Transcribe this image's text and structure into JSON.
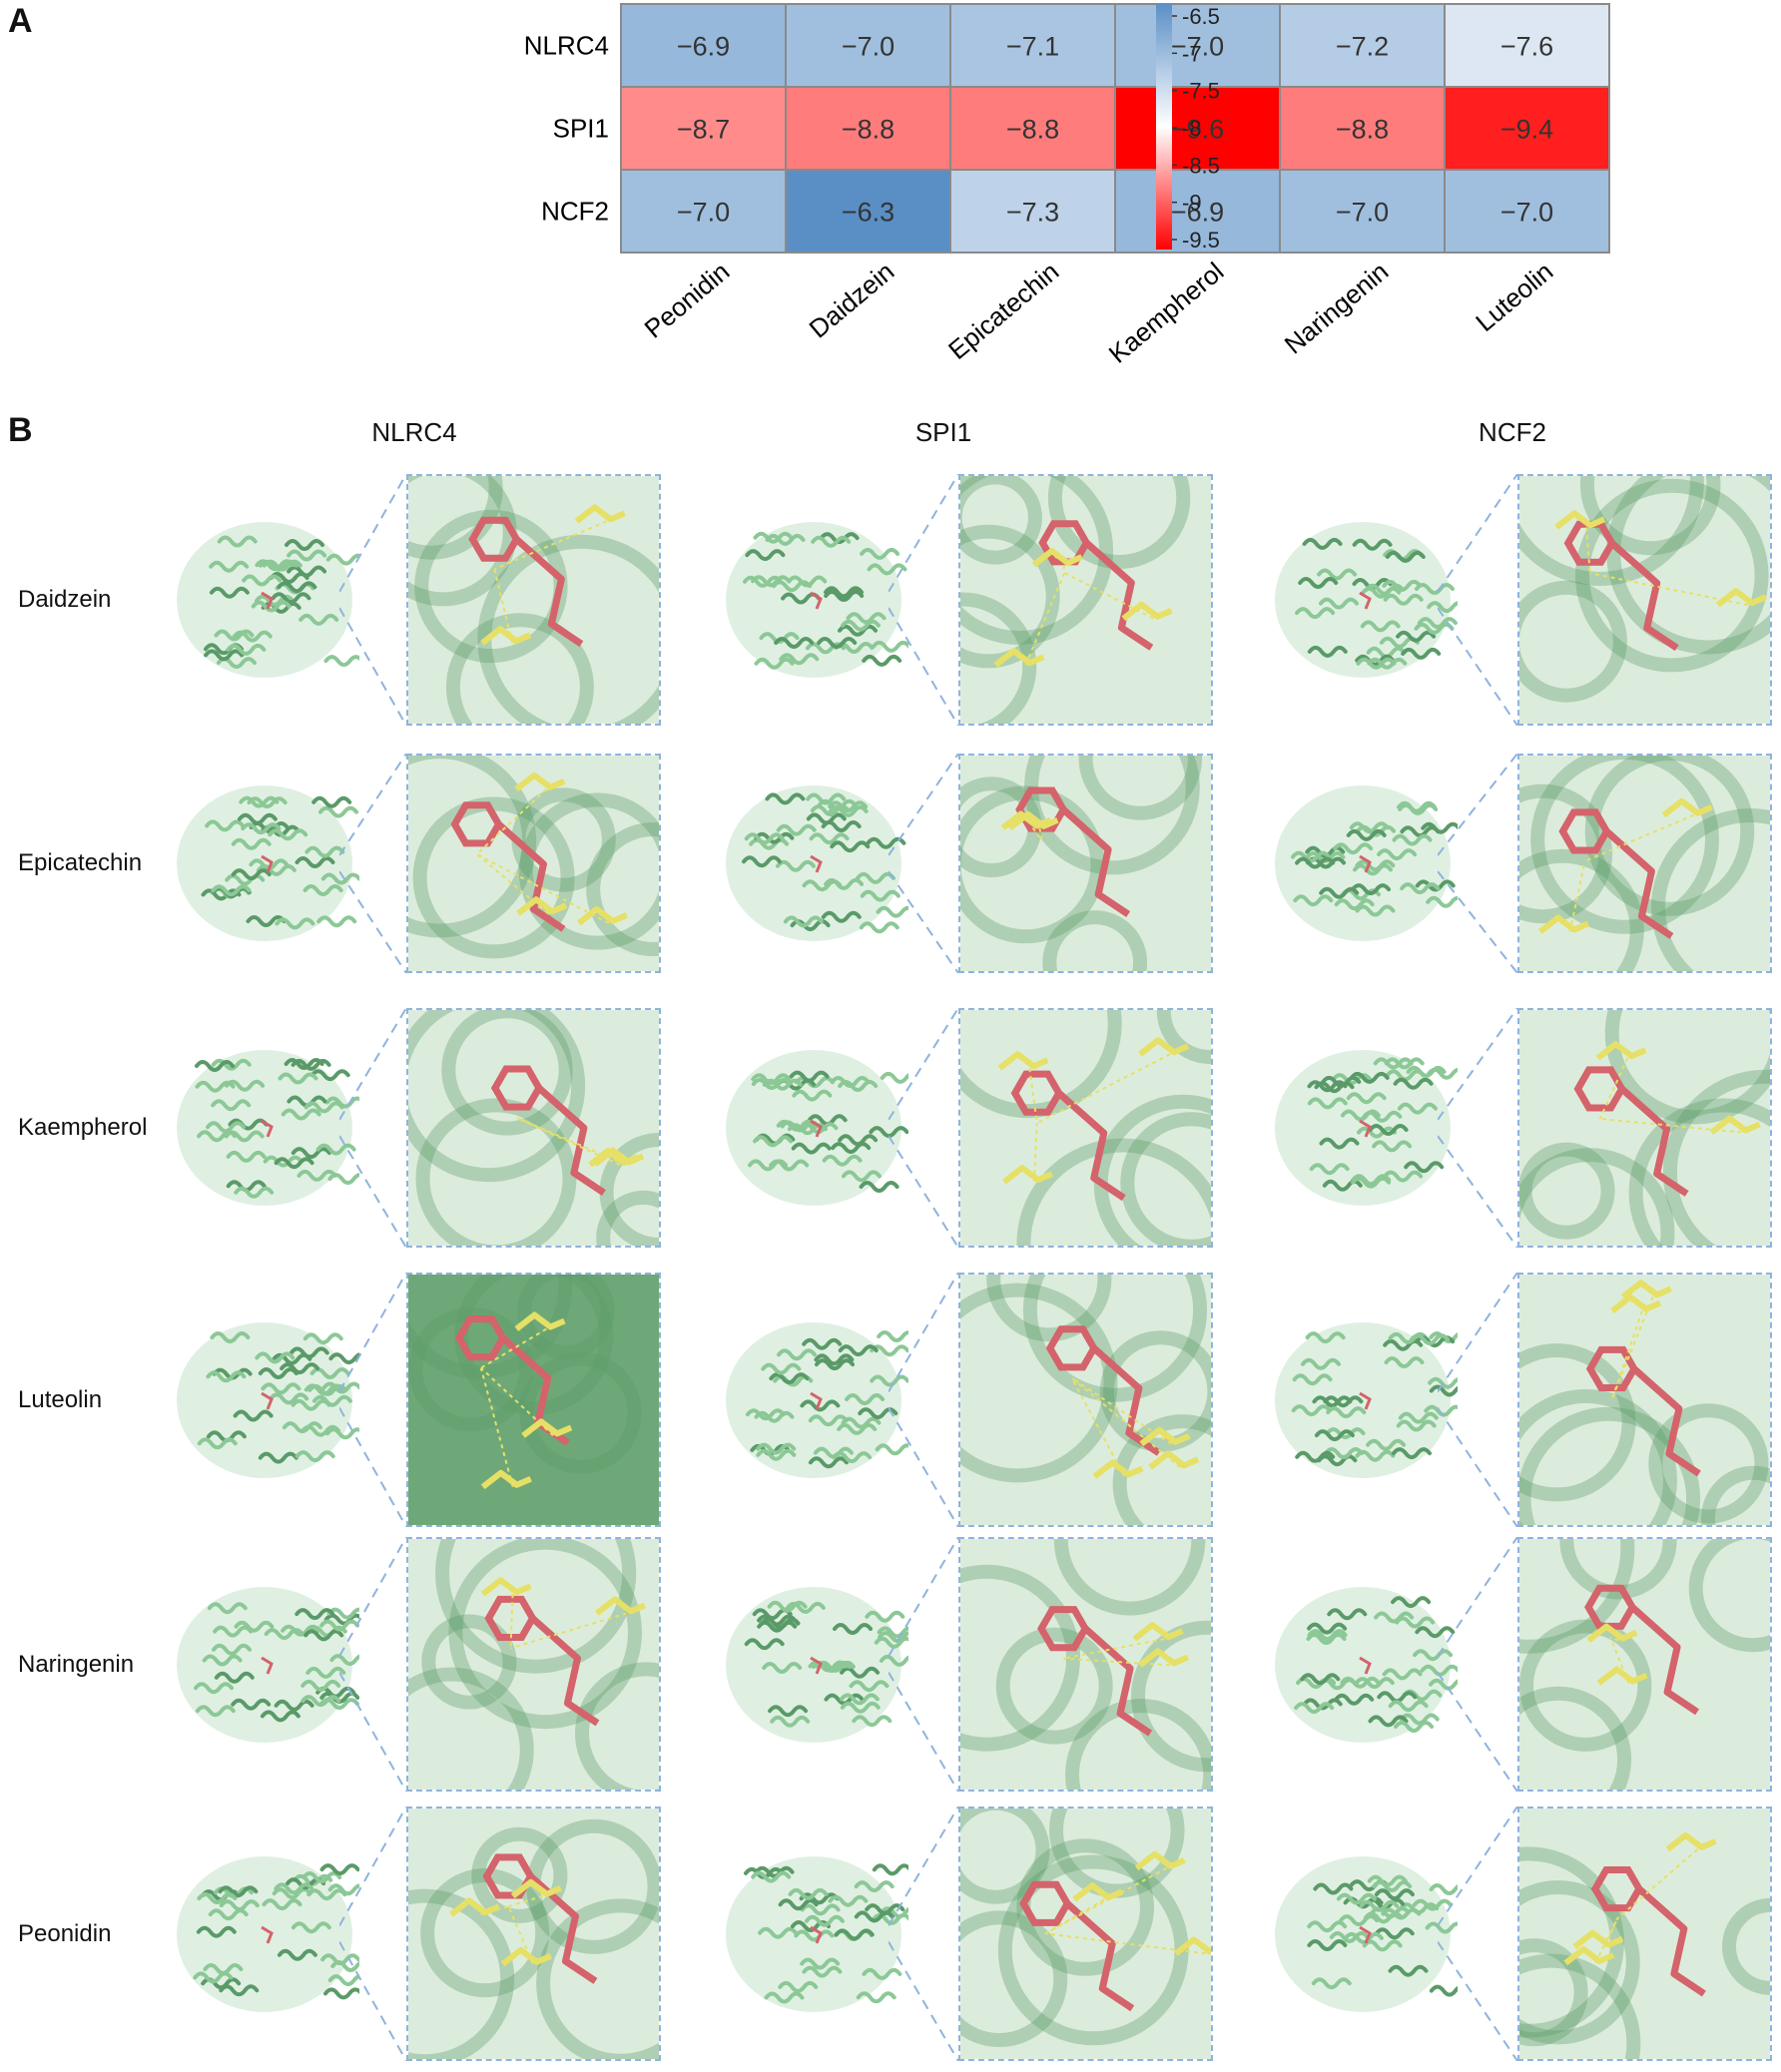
{
  "panels": {
    "a_letter": "A",
    "b_letter": "B"
  },
  "chart_data": {
    "type": "heatmap",
    "rows": [
      "NLRC4",
      "SPI1",
      "NCF2"
    ],
    "columns": [
      "Peonidin",
      "Daidzein",
      "Epicatechin",
      "Kaempherol",
      "Naringenin",
      "Luteolin"
    ],
    "values": [
      [
        -6.9,
        -7.0,
        -7.1,
        -7.0,
        -7.2,
        -7.6
      ],
      [
        -8.7,
        -8.8,
        -8.8,
        -9.6,
        -8.8,
        -9.4
      ],
      [
        -7.0,
        -6.3,
        -7.3,
        -6.9,
        -7.0,
        -7.0
      ]
    ],
    "cell_labels": [
      [
        "−6.9",
        "−7.0",
        "−7.1",
        "−7.0",
        "−7.2",
        "−7.6"
      ],
      [
        "−8.7",
        "−8.8",
        "−8.8",
        "−9.6",
        "−8.8",
        "−9.4"
      ],
      [
        "−7.0",
        "−6.3",
        "−7.3",
        "−6.9",
        "−7.0",
        "−7.0"
      ]
    ],
    "colorbar": {
      "ticks": [
        -6.5,
        -7,
        -7.5,
        -8,
        -8.5,
        -9,
        -9.5
      ],
      "tick_labels": [
        "-6.5",
        "-7",
        "-7.5",
        "-8",
        "-8.5",
        "-9",
        "-9.5"
      ],
      "range": [
        -6.3,
        -9.6
      ],
      "colors": {
        "high": "#5a8fc6",
        "mid": "#ffffff",
        "low": "#ff0000"
      }
    }
  },
  "panel_b": {
    "columns": [
      "NLRC4",
      "SPI1",
      "NCF2"
    ],
    "rows": [
      "Daidzein",
      "Epicatechin",
      "Kaempherol",
      "Luteolin",
      "Naringenin",
      "Peonidin"
    ],
    "colors": {
      "protein": "#8cc896",
      "protein_dark": "#5a9a68",
      "ligand": "#d4636b",
      "residue": "#e6e066",
      "frame": "#8fb3dd"
    }
  }
}
